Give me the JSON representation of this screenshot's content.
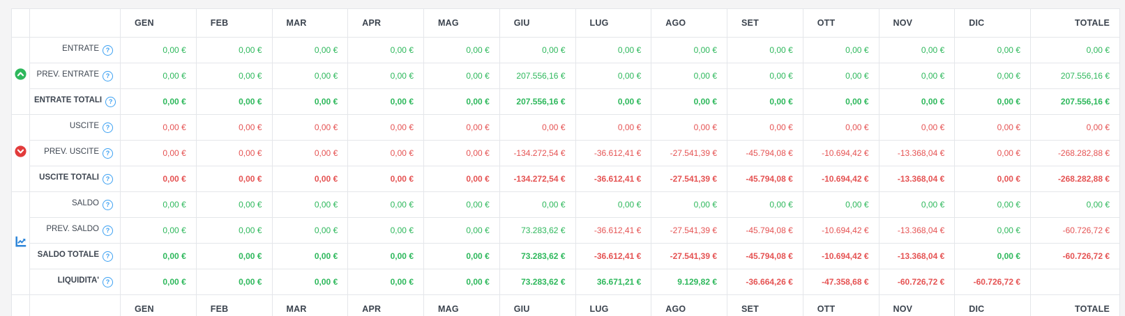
{
  "colors": {
    "positive": "#2eb85c",
    "negative": "#e55353",
    "help_icon": "#3ba0f2",
    "income_icon": "#2eb85c",
    "expense_icon": "#e23b3b",
    "chart_icon": "#2e86d9",
    "header_text": "#3b434e"
  },
  "table": {
    "months": [
      "GEN",
      "FEB",
      "MAR",
      "APR",
      "MAG",
      "GIU",
      "LUG",
      "AGO",
      "SET",
      "OTT",
      "NOV",
      "DIC"
    ],
    "total_label": "TOTALE",
    "help_glyph": "?",
    "groups": [
      {
        "id": "entrate",
        "icon": "circle-arrow-up-icon",
        "rows": [
          {
            "label": "ENTRATE",
            "help": true,
            "bold": false,
            "values": [
              "0,00 €",
              "0,00 €",
              "0,00 €",
              "0,00 €",
              "0,00 €",
              "0,00 €",
              "0,00 €",
              "0,00 €",
              "0,00 €",
              "0,00 €",
              "0,00 €",
              "0,00 €",
              "0,00 €"
            ],
            "signs": [
              "p",
              "p",
              "p",
              "p",
              "p",
              "p",
              "p",
              "p",
              "p",
              "p",
              "p",
              "p",
              "p"
            ]
          },
          {
            "label": "PREV. ENTRATE",
            "help": true,
            "bold": false,
            "values": [
              "0,00 €",
              "0,00 €",
              "0,00 €",
              "0,00 €",
              "0,00 €",
              "207.556,16 €",
              "0,00 €",
              "0,00 €",
              "0,00 €",
              "0,00 €",
              "0,00 €",
              "0,00 €",
              "207.556,16 €"
            ],
            "signs": [
              "p",
              "p",
              "p",
              "p",
              "p",
              "p",
              "p",
              "p",
              "p",
              "p",
              "p",
              "p",
              "p"
            ]
          },
          {
            "label": "ENTRATE TOTALI",
            "help": true,
            "bold": true,
            "values": [
              "0,00 €",
              "0,00 €",
              "0,00 €",
              "0,00 €",
              "0,00 €",
              "207.556,16 €",
              "0,00 €",
              "0,00 €",
              "0,00 €",
              "0,00 €",
              "0,00 €",
              "0,00 €",
              "207.556,16 €"
            ],
            "signs": [
              "p",
              "p",
              "p",
              "p",
              "p",
              "p",
              "p",
              "p",
              "p",
              "p",
              "p",
              "p",
              "p"
            ]
          }
        ]
      },
      {
        "id": "uscite",
        "icon": "circle-arrow-down-icon",
        "rows": [
          {
            "label": "USCITE",
            "help": true,
            "bold": false,
            "values": [
              "0,00 €",
              "0,00 €",
              "0,00 €",
              "0,00 €",
              "0,00 €",
              "0,00 €",
              "0,00 €",
              "0,00 €",
              "0,00 €",
              "0,00 €",
              "0,00 €",
              "0,00 €",
              "0,00 €"
            ],
            "signs": [
              "n",
              "n",
              "n",
              "n",
              "n",
              "n",
              "n",
              "n",
              "n",
              "n",
              "n",
              "n",
              "n"
            ]
          },
          {
            "label": "PREV. USCITE",
            "help": true,
            "bold": false,
            "values": [
              "0,00 €",
              "0,00 €",
              "0,00 €",
              "0,00 €",
              "0,00 €",
              "-134.272,54 €",
              "-36.612,41 €",
              "-27.541,39 €",
              "-45.794,08 €",
              "-10.694,42 €",
              "-13.368,04 €",
              "0,00 €",
              "-268.282,88 €"
            ],
            "signs": [
              "n",
              "n",
              "n",
              "n",
              "n",
              "n",
              "n",
              "n",
              "n",
              "n",
              "n",
              "n",
              "n"
            ]
          },
          {
            "label": "USCITE TOTALI",
            "help": true,
            "bold": true,
            "values": [
              "0,00 €",
              "0,00 €",
              "0,00 €",
              "0,00 €",
              "0,00 €",
              "-134.272,54 €",
              "-36.612,41 €",
              "-27.541,39 €",
              "-45.794,08 €",
              "-10.694,42 €",
              "-13.368,04 €",
              "0,00 €",
              "-268.282,88 €"
            ],
            "signs": [
              "n",
              "n",
              "n",
              "n",
              "n",
              "n",
              "n",
              "n",
              "n",
              "n",
              "n",
              "n",
              "n"
            ]
          }
        ]
      },
      {
        "id": "saldo",
        "icon": "chart-line-icon",
        "rows": [
          {
            "label": "SALDO",
            "help": true,
            "bold": false,
            "values": [
              "0,00 €",
              "0,00 €",
              "0,00 €",
              "0,00 €",
              "0,00 €",
              "0,00 €",
              "0,00 €",
              "0,00 €",
              "0,00 €",
              "0,00 €",
              "0,00 €",
              "0,00 €",
              "0,00 €"
            ],
            "signs": [
              "p",
              "p",
              "p",
              "p",
              "p",
              "p",
              "p",
              "p",
              "p",
              "p",
              "p",
              "p",
              "p"
            ]
          },
          {
            "label": "PREV. SALDO",
            "help": true,
            "bold": false,
            "values": [
              "0,00 €",
              "0,00 €",
              "0,00 €",
              "0,00 €",
              "0,00 €",
              "73.283,62 €",
              "-36.612,41 €",
              "-27.541,39 €",
              "-45.794,08 €",
              "-10.694,42 €",
              "-13.368,04 €",
              "0,00 €",
              "-60.726,72 €"
            ],
            "signs": [
              "p",
              "p",
              "p",
              "p",
              "p",
              "p",
              "n",
              "n",
              "n",
              "n",
              "n",
              "p",
              "n"
            ]
          },
          {
            "label": "SALDO TOTALE",
            "help": true,
            "bold": true,
            "values": [
              "0,00 €",
              "0,00 €",
              "0,00 €",
              "0,00 €",
              "0,00 €",
              "73.283,62 €",
              "-36.612,41 €",
              "-27.541,39 €",
              "-45.794,08 €",
              "-10.694,42 €",
              "-13.368,04 €",
              "0,00 €",
              "-60.726,72 €"
            ],
            "signs": [
              "p",
              "p",
              "p",
              "p",
              "p",
              "p",
              "n",
              "n",
              "n",
              "n",
              "n",
              "p",
              "n"
            ]
          },
          {
            "label": "LIQUIDITA'",
            "help": true,
            "bold": true,
            "values": [
              "0,00 €",
              "0,00 €",
              "0,00 €",
              "0,00 €",
              "0,00 €",
              "73.283,62 €",
              "36.671,21 €",
              "9.129,82 €",
              "-36.664,26 €",
              "-47.358,68 €",
              "-60.726,72 €",
              "-60.726,72 €",
              ""
            ],
            "signs": [
              "p",
              "p",
              "p",
              "p",
              "p",
              "p",
              "p",
              "p",
              "n",
              "n",
              "n",
              "n",
              ""
            ]
          }
        ]
      }
    ]
  }
}
